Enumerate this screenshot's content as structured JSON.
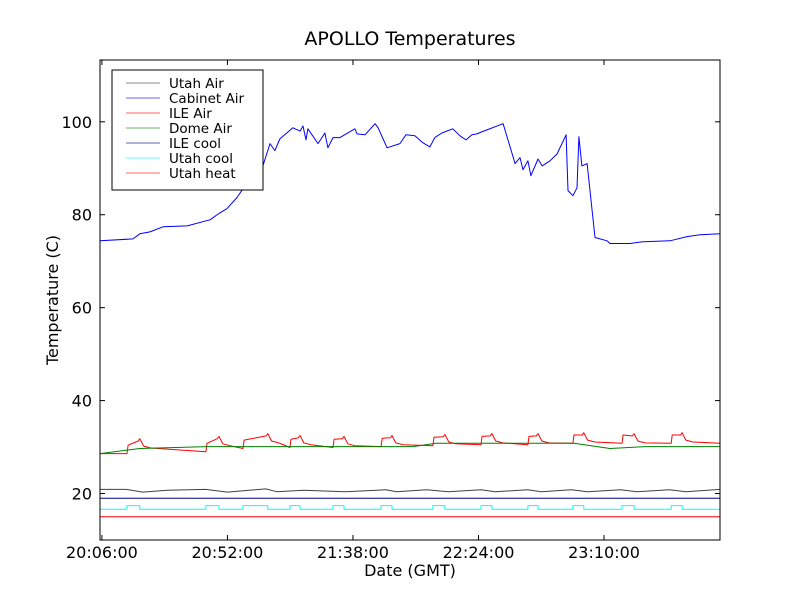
{
  "chart_data": {
    "type": "line",
    "title": "APOLLO Temperatures",
    "xlabel": "Date (GMT)",
    "ylabel": "Temperature (C)",
    "x_units": "minutes after 20:00:00 GMT",
    "xlim": [
      5.3,
      232.5
    ],
    "ylim": [
      10,
      113.3
    ],
    "xticks": [
      {
        "value": 6,
        "label": "20:06:00"
      },
      {
        "value": 52,
        "label": "20:52:00"
      },
      {
        "value": 98,
        "label": "21:38:00"
      },
      {
        "value": 144,
        "label": "22:24:00"
      },
      {
        "value": 190,
        "label": "23:10:00"
      }
    ],
    "yticks": [
      {
        "value": 20,
        "label": "20"
      },
      {
        "value": 40,
        "label": "40"
      },
      {
        "value": 60,
        "label": "60"
      },
      {
        "value": 80,
        "label": "80"
      },
      {
        "value": 100,
        "label": "100"
      }
    ],
    "grid": false,
    "legend_position": "upper-left",
    "series": [
      {
        "name": "Utah Air",
        "color": "#404040",
        "points": [
          [
            5.3,
            20.9
          ],
          [
            15,
            20.9
          ],
          [
            21,
            20.3
          ],
          [
            30,
            20.7
          ],
          [
            44,
            20.9
          ],
          [
            52,
            20.3
          ],
          [
            60,
            20.7
          ],
          [
            66,
            21.0
          ],
          [
            70,
            20.4
          ],
          [
            80,
            20.7
          ],
          [
            95,
            20.4
          ],
          [
            110,
            20.8
          ],
          [
            114,
            20.4
          ],
          [
            125,
            20.8
          ],
          [
            133,
            20.4
          ],
          [
            145,
            20.8
          ],
          [
            150,
            20.4
          ],
          [
            162,
            20.8
          ],
          [
            167,
            20.4
          ],
          [
            178,
            20.8
          ],
          [
            184,
            20.4
          ],
          [
            196,
            20.8
          ],
          [
            202,
            20.4
          ],
          [
            214,
            20.8
          ],
          [
            220,
            20.4
          ],
          [
            232.5,
            20.9
          ]
        ]
      },
      {
        "name": "Cabinet Air",
        "color": "#0000ff",
        "points": [
          [
            5.3,
            74.4
          ],
          [
            17.4,
            74.8
          ],
          [
            19.9,
            75.9
          ],
          [
            23.6,
            76.3
          ],
          [
            28.4,
            77.4
          ],
          [
            37.2,
            77.6
          ],
          [
            45.6,
            78.9
          ],
          [
            49.2,
            80.4
          ],
          [
            51.8,
            81.3
          ],
          [
            55.5,
            83.7
          ],
          [
            57.7,
            85.6
          ],
          [
            62.8,
            88.0
          ],
          [
            65.0,
            90.5
          ],
          [
            67.6,
            95.3
          ],
          [
            69.4,
            93.8
          ],
          [
            71.2,
            96.3
          ],
          [
            76.0,
            98.7
          ],
          [
            78.6,
            98.0
          ],
          [
            79.7,
            99.1
          ],
          [
            80.8,
            96.1
          ],
          [
            81.5,
            98.5
          ],
          [
            85.2,
            95.3
          ],
          [
            87.7,
            97.6
          ],
          [
            88.8,
            94.4
          ],
          [
            90.7,
            96.6
          ],
          [
            93.2,
            96.6
          ],
          [
            98.7,
            98.5
          ],
          [
            99.5,
            97.4
          ],
          [
            102.4,
            97.2
          ],
          [
            106.1,
            99.6
          ],
          [
            107.2,
            98.7
          ],
          [
            110.5,
            94.4
          ],
          [
            115.2,
            95.3
          ],
          [
            117.4,
            97.2
          ],
          [
            120.7,
            97.0
          ],
          [
            123.6,
            95.5
          ],
          [
            126.2,
            94.6
          ],
          [
            128.0,
            96.6
          ],
          [
            130.6,
            97.6
          ],
          [
            134.6,
            98.5
          ],
          [
            137.2,
            97.0
          ],
          [
            139.4,
            96.1
          ],
          [
            141.6,
            97.2
          ],
          [
            143.4,
            97.4
          ],
          [
            146.4,
            98.1
          ],
          [
            153.0,
            99.6
          ],
          [
            157.4,
            91.0
          ],
          [
            159.2,
            92.3
          ],
          [
            160.3,
            89.7
          ],
          [
            162.1,
            91.6
          ],
          [
            163.2,
            88.4
          ],
          [
            165.8,
            92.0
          ],
          [
            167.3,
            90.5
          ],
          [
            170.2,
            91.6
          ],
          [
            172.8,
            93.1
          ],
          [
            176.1,
            97.2
          ],
          [
            176.8,
            85.2
          ],
          [
            178.6,
            84.1
          ],
          [
            180.1,
            85.8
          ],
          [
            180.8,
            96.8
          ],
          [
            181.9,
            90.5
          ],
          [
            183.8,
            91.0
          ],
          [
            186.7,
            75.1
          ],
          [
            191.1,
            74.4
          ],
          [
            192.2,
            73.8
          ],
          [
            199.5,
            73.8
          ],
          [
            204.3,
            74.2
          ],
          [
            214.2,
            74.4
          ],
          [
            220.4,
            75.3
          ],
          [
            225.2,
            75.7
          ],
          [
            232.5,
            75.9
          ]
        ]
      },
      {
        "name": "ILE Air",
        "color": "#ff0000",
        "cycles": [
          [
            15.2,
            19.9,
            31.8,
            28.6
          ],
          [
            44.1,
            48.9,
            32.3,
            29.0
          ],
          [
            57.7,
            66.8,
            32.9,
            29.7
          ],
          [
            74.9,
            78.6,
            32.5,
            29.9
          ],
          [
            90.7,
            94.7,
            32.3,
            29.9
          ],
          [
            108.3,
            112.3,
            32.5,
            30.1
          ],
          [
            127.3,
            131.7,
            32.7,
            30.3
          ],
          [
            144.9,
            148.9,
            32.9,
            30.5
          ],
          [
            162.1,
            165.8,
            32.9,
            30.5
          ],
          [
            178.6,
            182.6,
            33.1,
            30.8
          ],
          [
            196.6,
            201.0,
            32.9,
            30.8
          ],
          [
            214.6,
            218.6,
            33.1,
            30.8
          ]
        ],
        "end_value": 30.8
      },
      {
        "name": "Dome Air",
        "color": "#008000",
        "points": [
          [
            5.3,
            28.6
          ],
          [
            19.9,
            29.7
          ],
          [
            44.5,
            30.1
          ],
          [
            120,
            30.1
          ],
          [
            128.4,
            30.8
          ],
          [
            179,
            30.8
          ],
          [
            192.2,
            29.7
          ],
          [
            205,
            30.1
          ],
          [
            232.5,
            30.1
          ]
        ]
      },
      {
        "name": "ILE cool",
        "color": "#000080",
        "points": [
          [
            5.3,
            19.0
          ],
          [
            232.5,
            19.0
          ]
        ]
      },
      {
        "name": "Utah cool",
        "color": "#00ffff",
        "low": 16.6,
        "high": 17.4,
        "pulses": [
          [
            15.2,
            19.9
          ],
          [
            44.1,
            48.9
          ],
          [
            57.7,
            66.8
          ],
          [
            74.9,
            78.6
          ],
          [
            90.7,
            94.7
          ],
          [
            108.3,
            112.3
          ],
          [
            127.3,
            131.7
          ],
          [
            144.9,
            148.9
          ],
          [
            162.1,
            165.8
          ],
          [
            178.6,
            182.6
          ],
          [
            196.6,
            201.0
          ],
          [
            214.6,
            218.6
          ]
        ]
      },
      {
        "name": "Utah heat",
        "color": "#ff0000",
        "points": [
          [
            5.3,
            15.0
          ],
          [
            232.5,
            15.0
          ]
        ]
      }
    ]
  }
}
